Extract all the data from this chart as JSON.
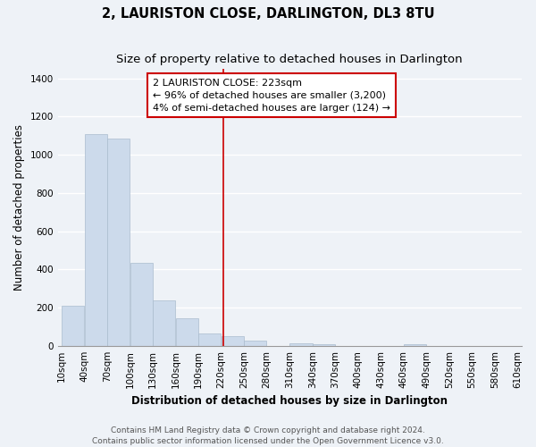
{
  "title": "2, LAURISTON CLOSE, DARLINGTON, DL3 8TU",
  "subtitle": "Size of property relative to detached houses in Darlington",
  "xlabel": "Distribution of detached houses by size in Darlington",
  "ylabel": "Number of detached properties",
  "bar_color": "#ccdaeb",
  "bar_edge_color": "#aabcce",
  "bin_edges": [
    10,
    40,
    70,
    100,
    130,
    160,
    190,
    220,
    250,
    280,
    310,
    340,
    370,
    400,
    430,
    460,
    490,
    520,
    550,
    580,
    610
  ],
  "bin_labels": [
    "10sqm",
    "40sqm",
    "70sqm",
    "100sqm",
    "130sqm",
    "160sqm",
    "190sqm",
    "220sqm",
    "250sqm",
    "280sqm",
    "310sqm",
    "340sqm",
    "370sqm",
    "400sqm",
    "430sqm",
    "460sqm",
    "490sqm",
    "520sqm",
    "550sqm",
    "580sqm",
    "610sqm"
  ],
  "counts": [
    210,
    1110,
    1085,
    435,
    240,
    145,
    65,
    50,
    25,
    0,
    15,
    10,
    0,
    0,
    0,
    10,
    0,
    0,
    0,
    0
  ],
  "property_size": 223,
  "property_line_color": "#cc0000",
  "annotation_line1": "2 LAURISTON CLOSE: 223sqm",
  "annotation_line2": "← 96% of detached houses are smaller (3,200)",
  "annotation_line3": "4% of semi-detached houses are larger (124) →",
  "annotation_box_color": "#ffffff",
  "annotation_box_edge_color": "#cc0000",
  "ylim": [
    0,
    1450
  ],
  "yticks": [
    0,
    200,
    400,
    600,
    800,
    1000,
    1200,
    1400
  ],
  "footer_text": "Contains HM Land Registry data © Crown copyright and database right 2024.\nContains public sector information licensed under the Open Government Licence v3.0.",
  "background_color": "#eef2f7",
  "title_fontsize": 10.5,
  "subtitle_fontsize": 9.5,
  "axis_label_fontsize": 8.5,
  "tick_fontsize": 7.5,
  "annotation_fontsize": 8,
  "footer_fontsize": 6.5
}
